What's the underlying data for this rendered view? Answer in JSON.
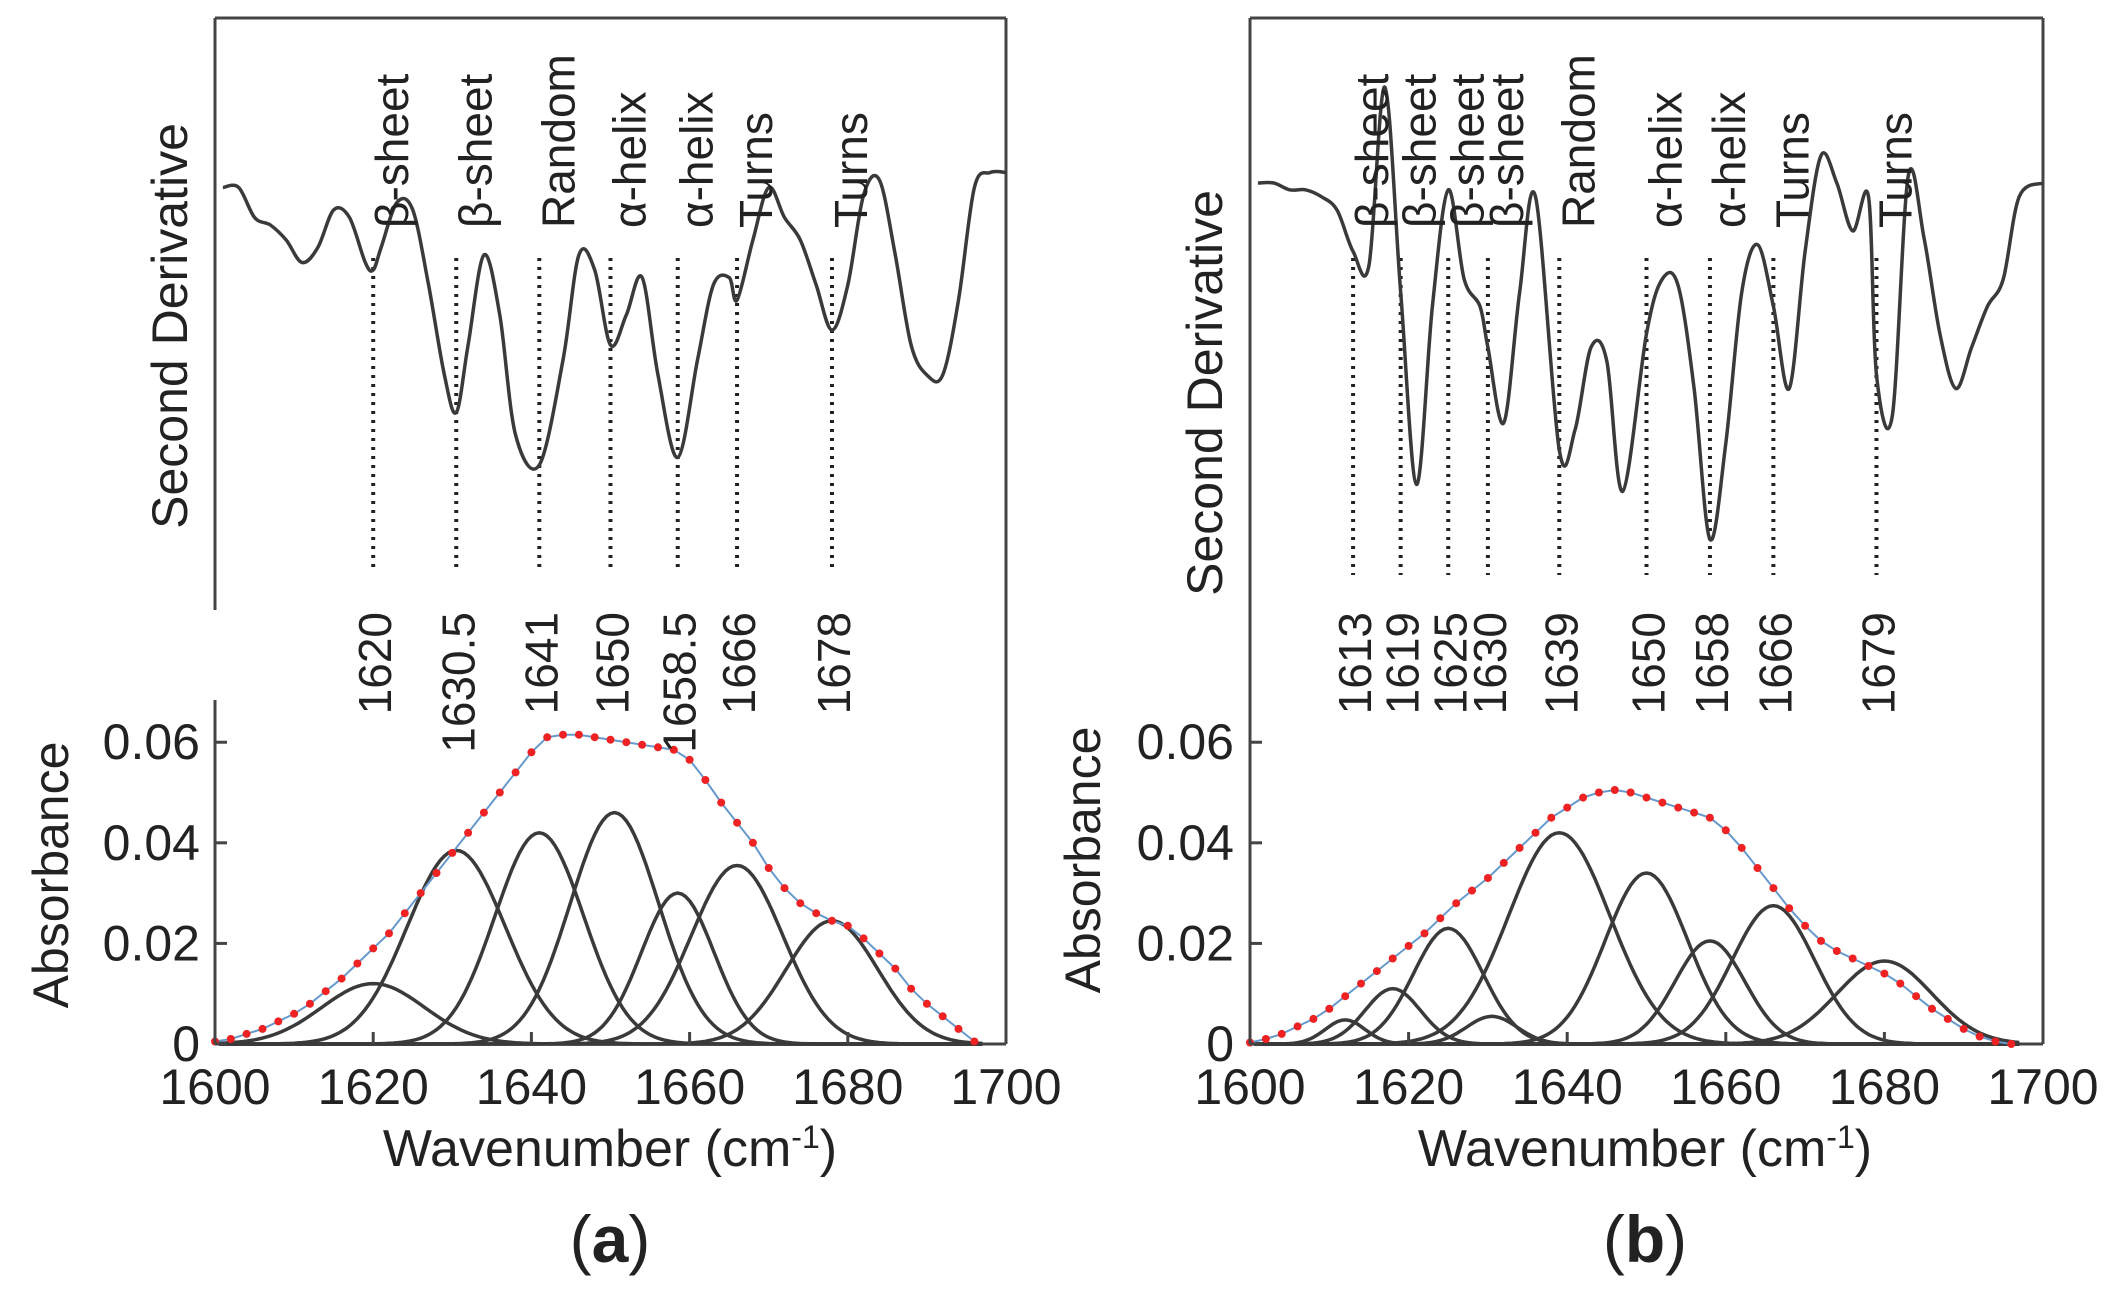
{
  "colors": {
    "curve": "#3a3a3a",
    "frame": "#444444",
    "composite_dots": "#ee2222",
    "composite_line": "#6699cc"
  },
  "x_axis": {
    "label_main": "Wavenumber (cm",
    "label_exp": "-1",
    "label_close": ")",
    "ticks": [
      1600,
      1620,
      1640,
      1660,
      1680,
      1700
    ],
    "xlim": [
      1600,
      1700
    ]
  },
  "y_axis": {
    "label": "Absorbance",
    "ticks": [
      "0",
      "0.02",
      "0.04",
      "0.06"
    ],
    "ylim": [
      0,
      0.068
    ]
  },
  "second_derivative_label": "Second Derivative",
  "chart_data": [
    {
      "type": "line",
      "panel": "(a)",
      "panel_letter": "a",
      "title": "",
      "xlabel": "Wavenumber (cm-1)",
      "ylabel": "Absorbance",
      "top_ylabel": "Second Derivative",
      "xlim": [
        1600,
        1700
      ],
      "ylim": [
        0,
        0.068
      ],
      "band_assignments": [
        {
          "wavenumber": 1620,
          "label": "1620",
          "structure": "β-sheet"
        },
        {
          "wavenumber": 1630.5,
          "label": "1630.5",
          "structure": "β-sheet"
        },
        {
          "wavenumber": 1641,
          "label": "1641",
          "structure": "Random"
        },
        {
          "wavenumber": 1650,
          "label": "1650",
          "structure": "α-helix"
        },
        {
          "wavenumber": 1658.5,
          "label": "1658.5",
          "structure": "α-helix"
        },
        {
          "wavenumber": 1666,
          "label": "1666",
          "structure": "Turns"
        },
        {
          "wavenumber": 1678,
          "label": "1678",
          "structure": "Turns"
        }
      ],
      "fitted_bands": [
        {
          "center": 1620,
          "height": 0.012,
          "sigma": 6.5
        },
        {
          "center": 1630.5,
          "height": 0.0385,
          "sigma": 6.2
        },
        {
          "center": 1641,
          "height": 0.042,
          "sigma": 5.6
        },
        {
          "center": 1650.5,
          "height": 0.046,
          "sigma": 5.6
        },
        {
          "center": 1658.5,
          "height": 0.03,
          "sigma": 4.6
        },
        {
          "center": 1666,
          "height": 0.0355,
          "sigma": 5.8
        },
        {
          "center": 1678,
          "height": 0.0245,
          "sigma": 5.8
        }
      ],
      "composite_curve": {
        "x": [
          1600,
          1602,
          1604,
          1606,
          1608,
          1610,
          1612,
          1614,
          1616,
          1618,
          1620,
          1622,
          1624,
          1626,
          1628,
          1630,
          1632,
          1634,
          1636,
          1638,
          1640,
          1642,
          1644,
          1646,
          1648,
          1650,
          1652,
          1654,
          1656,
          1658,
          1660,
          1662,
          1664,
          1666,
          1668,
          1670,
          1672,
          1674,
          1676,
          1678,
          1680,
          1682,
          1684,
          1686,
          1688,
          1690,
          1692,
          1694,
          1696
        ],
        "y": [
          0.0005,
          0.001,
          0.002,
          0.003,
          0.0045,
          0.006,
          0.008,
          0.0105,
          0.013,
          0.016,
          0.019,
          0.022,
          0.026,
          0.03,
          0.034,
          0.038,
          0.042,
          0.046,
          0.05,
          0.054,
          0.058,
          0.061,
          0.0615,
          0.0615,
          0.061,
          0.0605,
          0.06,
          0.0595,
          0.059,
          0.0585,
          0.0565,
          0.0525,
          0.048,
          0.044,
          0.04,
          0.035,
          0.031,
          0.028,
          0.026,
          0.0245,
          0.0235,
          0.021,
          0.018,
          0.015,
          0.011,
          0.008,
          0.0055,
          0.003,
          0.0005
        ]
      },
      "second_derivative": {
        "x": [
          1601,
          1603,
          1605,
          1607,
          1609,
          1611,
          1613,
          1615,
          1617,
          1619,
          1620,
          1621,
          1623,
          1625,
          1627,
          1629,
          1630.5,
          1632,
          1634,
          1636,
          1638,
          1641,
          1644,
          1646,
          1648,
          1650,
          1652,
          1654,
          1656,
          1658.5,
          1661,
          1663,
          1665,
          1666,
          1668,
          1670,
          1672,
          1674,
          1676,
          1678,
          1680,
          1682,
          1684,
          1686,
          1688,
          1690,
          1692,
          1694,
          1696,
          1698,
          1700
        ],
        "y": [
          0.95,
          0.95,
          0.75,
          0.7,
          0.6,
          0.45,
          0.55,
          0.8,
          0.75,
          0.45,
          0.4,
          0.55,
          0.85,
          0.8,
          0.3,
          -0.3,
          -0.55,
          -0.1,
          0.5,
          0.1,
          -0.7,
          -0.9,
          -0.2,
          0.5,
          0.4,
          -0.1,
          0.1,
          0.35,
          -0.3,
          -0.85,
          -0.2,
          0.3,
          0.35,
          0.2,
          0.6,
          0.95,
          0.75,
          0.6,
          0.3,
          0.0,
          0.3,
          0.9,
          1.0,
          0.5,
          -0.1,
          -0.3,
          -0.3,
          0.2,
          0.95,
          1.05,
          1.05
        ]
      }
    },
    {
      "type": "line",
      "panel": "(b)",
      "panel_letter": "b",
      "title": "",
      "xlabel": "Wavenumber (cm-1)",
      "ylabel": "Absorbance",
      "top_ylabel": "Second Derivative",
      "xlim": [
        1600,
        1700
      ],
      "ylim": [
        0,
        0.068
      ],
      "band_assignments": [
        {
          "wavenumber": 1613,
          "label": "1613",
          "structure": "β-sheet"
        },
        {
          "wavenumber": 1619,
          "label": "1619",
          "structure": "β-sheet"
        },
        {
          "wavenumber": 1625,
          "label": "1625",
          "structure": "β-sheet"
        },
        {
          "wavenumber": 1630,
          "label": "1630",
          "structure": "β-sheet"
        },
        {
          "wavenumber": 1639,
          "label": "1639",
          "structure": "Random"
        },
        {
          "wavenumber": 1650,
          "label": "1650",
          "structure": "α-helix"
        },
        {
          "wavenumber": 1658,
          "label": "1658",
          "structure": "α-helix"
        },
        {
          "wavenumber": 1666,
          "label": "1666",
          "structure": "Turns"
        },
        {
          "wavenumber": 1679,
          "label": "1679",
          "structure": "Turns"
        }
      ],
      "fitted_bands": [
        {
          "center": 1612,
          "height": 0.0048,
          "sigma": 2.5
        },
        {
          "center": 1618,
          "height": 0.011,
          "sigma": 3.5
        },
        {
          "center": 1625,
          "height": 0.023,
          "sigma": 4.4
        },
        {
          "center": 1630.5,
          "height": 0.0055,
          "sigma": 3.2
        },
        {
          "center": 1639,
          "height": 0.042,
          "sigma": 6.4
        },
        {
          "center": 1650,
          "height": 0.034,
          "sigma": 5.2
        },
        {
          "center": 1658,
          "height": 0.0205,
          "sigma": 4.4
        },
        {
          "center": 1666,
          "height": 0.0275,
          "sigma": 5.2
        },
        {
          "center": 1680,
          "height": 0.0165,
          "sigma": 6.0
        }
      ],
      "composite_curve": {
        "x": [
          1600,
          1602,
          1604,
          1606,
          1608,
          1610,
          1612,
          1614,
          1616,
          1618,
          1620,
          1622,
          1624,
          1626,
          1628,
          1630,
          1632,
          1634,
          1636,
          1638,
          1640,
          1642,
          1644,
          1646,
          1648,
          1650,
          1652,
          1654,
          1656,
          1658,
          1660,
          1662,
          1664,
          1666,
          1668,
          1670,
          1672,
          1674,
          1676,
          1678,
          1680,
          1682,
          1684,
          1686,
          1688,
          1690,
          1692,
          1694,
          1696
        ],
        "y": [
          0.0003,
          0.001,
          0.002,
          0.0035,
          0.005,
          0.007,
          0.0095,
          0.012,
          0.0145,
          0.017,
          0.0195,
          0.022,
          0.025,
          0.028,
          0.0305,
          0.033,
          0.036,
          0.039,
          0.042,
          0.045,
          0.047,
          0.049,
          0.05,
          0.0505,
          0.05,
          0.049,
          0.048,
          0.047,
          0.046,
          0.045,
          0.0425,
          0.039,
          0.035,
          0.031,
          0.027,
          0.0235,
          0.0205,
          0.0185,
          0.017,
          0.0155,
          0.014,
          0.012,
          0.0095,
          0.007,
          0.005,
          0.003,
          0.0015,
          0.0005,
          0.0
        ]
      },
      "second_derivative": {
        "x": [
          1601,
          1603,
          1605,
          1607,
          1609,
          1611,
          1613,
          1615,
          1617,
          1619,
          1621,
          1623,
          1625,
          1627,
          1629,
          1630,
          1632,
          1634,
          1636,
          1639,
          1641,
          1643,
          1645,
          1647,
          1650,
          1652,
          1654,
          1656,
          1658,
          1660,
          1662,
          1664,
          1666,
          1668,
          1670,
          1672,
          1674,
          1676,
          1678,
          1679,
          1681,
          1683,
          1685,
          1687,
          1689,
          1691,
          1693,
          1695,
          1697,
          1700
        ],
        "y": [
          1.0,
          1.0,
          0.95,
          0.95,
          0.9,
          0.8,
          0.5,
          0.4,
          1.7,
          0.2,
          -1.2,
          0.1,
          0.95,
          0.3,
          0.1,
          -0.2,
          -0.75,
          0.2,
          0.9,
          -0.95,
          -0.8,
          -0.2,
          -0.3,
          -1.25,
          -0.1,
          0.3,
          0.25,
          -0.5,
          -1.6,
          -0.9,
          0.2,
          0.55,
          0.1,
          -0.5,
          0.5,
          1.2,
          1.0,
          0.65,
          0.9,
          -0.4,
          -0.7,
          1.05,
          0.6,
          -0.1,
          -0.5,
          -0.2,
          0.1,
          0.3,
          0.9,
          1.0
        ]
      }
    }
  ]
}
